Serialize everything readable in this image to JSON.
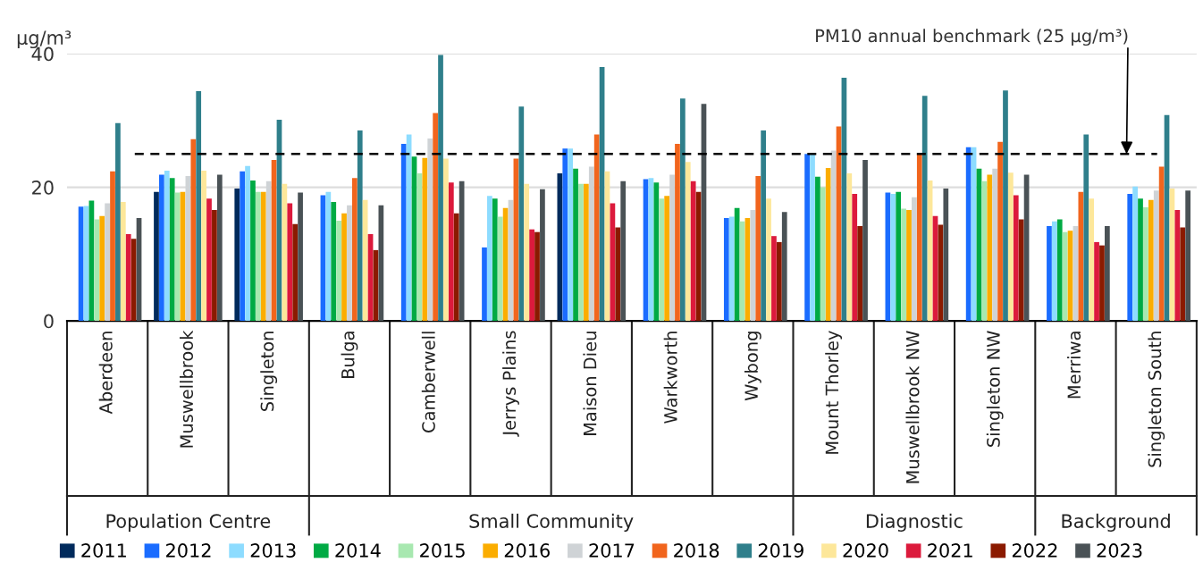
{
  "chart_data": {
    "type": "bar",
    "ylabel": "µg/m³",
    "categories": [
      "Aberdeen",
      "Muswellbrook",
      "Singleton",
      "Bulga",
      "Camberwell",
      "Jerrys Plains",
      "Maison Dieu",
      "Warkworth",
      "Wybong",
      "Mount Thorley",
      "Muswellbrook NW",
      "Singleton NW",
      "Merriwa",
      "Singleton South"
    ],
    "series": [
      {
        "name": "2011",
        "color": "#002a5c",
        "values": [
          null,
          19.3,
          19.8,
          null,
          null,
          null,
          22.1,
          null,
          null,
          null,
          null,
          null,
          null,
          null
        ]
      },
      {
        "name": "2012",
        "color": "#1a6cff",
        "values": [
          17.1,
          21.9,
          22.4,
          18.8,
          26.5,
          11.0,
          25.8,
          21.2,
          15.4,
          25.0,
          19.2,
          26.0,
          14.2,
          19.0
        ]
      },
      {
        "name": "2013",
        "color": "#8ddcff",
        "values": [
          17.2,
          22.5,
          23.2,
          19.3,
          27.9,
          18.7,
          25.8,
          21.4,
          15.6,
          25.0,
          19.0,
          26.0,
          14.9,
          20.1
        ]
      },
      {
        "name": "2014",
        "color": "#00aa44",
        "values": [
          18.0,
          21.4,
          21.0,
          17.8,
          24.6,
          18.3,
          22.8,
          20.7,
          16.9,
          21.6,
          19.3,
          22.8,
          15.2,
          18.3
        ]
      },
      {
        "name": "2015",
        "color": "#a8e8b0",
        "values": [
          15.2,
          19.2,
          19.3,
          15.0,
          22.1,
          15.6,
          20.5,
          18.3,
          14.9,
          20.0,
          16.8,
          20.9,
          13.3,
          17.0
        ]
      },
      {
        "name": "2016",
        "color": "#fbad00",
        "values": [
          15.7,
          19.3,
          19.3,
          16.1,
          24.4,
          16.9,
          20.5,
          18.7,
          15.4,
          22.9,
          16.6,
          21.9,
          13.5,
          18.1
        ]
      },
      {
        "name": "2017",
        "color": "#cfd3d6",
        "values": [
          17.6,
          21.7,
          20.9,
          17.3,
          27.3,
          18.1,
          23.1,
          21.9,
          16.6,
          25.5,
          18.5,
          22.8,
          14.2,
          19.5
        ]
      },
      {
        "name": "2018",
        "color": "#f1651d",
        "values": [
          22.4,
          27.2,
          24.1,
          21.4,
          31.1,
          24.3,
          27.9,
          26.5,
          21.7,
          29.1,
          25.0,
          26.8,
          19.3,
          23.1
        ]
      },
      {
        "name": "2019",
        "color": "#2f7f8b",
        "values": [
          29.6,
          34.4,
          30.1,
          28.5,
          39.8,
          32.1,
          38.0,
          33.3,
          28.5,
          36.4,
          33.7,
          34.5,
          27.9,
          30.8
        ]
      },
      {
        "name": "2020",
        "color": "#fde79a",
        "values": [
          17.8,
          22.5,
          20.5,
          18.1,
          24.3,
          20.5,
          22.4,
          23.8,
          18.3,
          22.1,
          21.0,
          22.2,
          18.3,
          19.8
        ]
      },
      {
        "name": "2021",
        "color": "#dc1a3c",
        "values": [
          13.0,
          18.3,
          17.6,
          13.0,
          20.7,
          13.7,
          17.6,
          20.9,
          12.7,
          19.0,
          15.7,
          18.8,
          11.8,
          16.6
        ]
      },
      {
        "name": "2022",
        "color": "#8b1a00",
        "values": [
          12.3,
          16.6,
          14.5,
          10.6,
          16.1,
          13.3,
          14.0,
          19.3,
          11.8,
          14.2,
          14.4,
          15.2,
          11.3,
          14.0
        ]
      },
      {
        "name": "2023",
        "color": "#4a5256",
        "values": [
          15.4,
          21.9,
          19.2,
          17.3,
          20.9,
          19.7,
          20.9,
          32.5,
          16.3,
          24.1,
          19.8,
          21.9,
          14.2,
          19.5
        ]
      }
    ],
    "ylim": [
      0,
      40
    ],
    "yticks": [
      0,
      20,
      40
    ],
    "grid": "y",
    "legend": "bottom",
    "ref_lines": [
      {
        "axis": "y",
        "value": 25,
        "label": "PM10 annual benchmark (25 µg/m³)",
        "color": "#000000",
        "line_style": "dashed"
      }
    ],
    "annotations": [
      "Population Centre",
      "Small Community",
      "Diagnostic",
      "Background"
    ]
  }
}
